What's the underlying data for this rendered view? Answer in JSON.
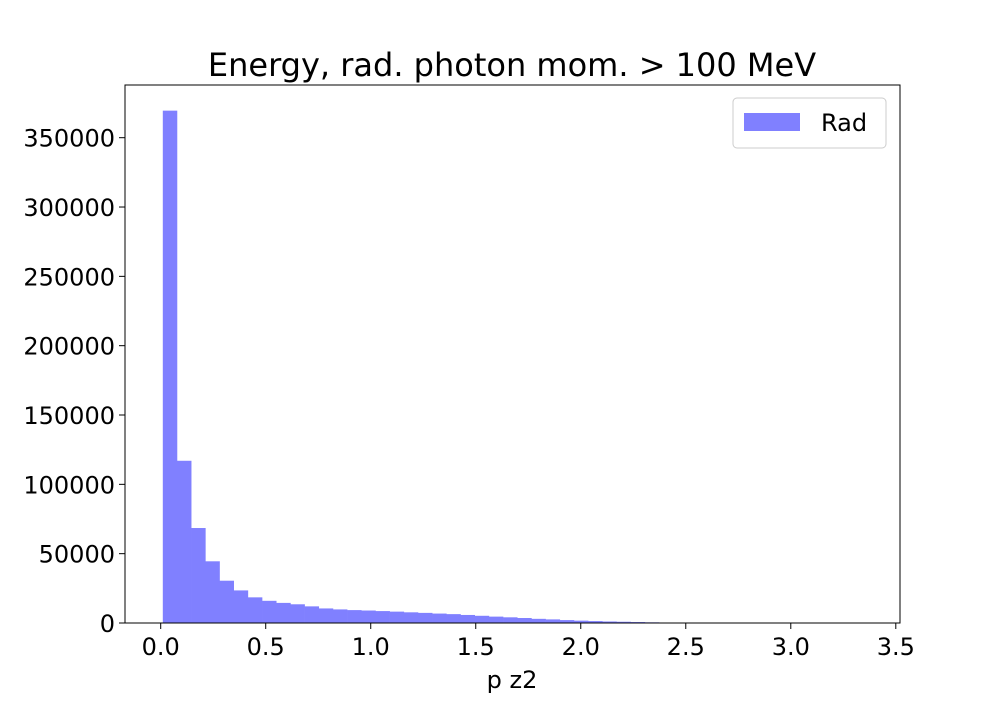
{
  "chart_data": {
    "type": "bar",
    "title": "Energy, rad. photon mom. > 100 MeV",
    "xlabel": "p z2",
    "ylabel": "",
    "xlim": [
      -0.17,
      3.52
    ],
    "ylim": [
      0,
      388000
    ],
    "x_ticks": [
      0.0,
      0.5,
      1.0,
      1.5,
      2.0,
      2.5,
      3.0,
      3.5
    ],
    "x_tick_labels": [
      "0.0",
      "0.5",
      "1.0",
      "1.5",
      "2.0",
      "2.5",
      "3.0",
      "3.5"
    ],
    "y_ticks": [
      0,
      50000,
      100000,
      150000,
      200000,
      250000,
      300000,
      350000
    ],
    "y_tick_labels": [
      "0",
      "50000",
      "100000",
      "150000",
      "200000",
      "250000",
      "300000",
      "350000"
    ],
    "grid": false,
    "legend_position": "top-right",
    "bin_width": 0.0675,
    "bin_edges_start": 0.01,
    "series": [
      {
        "name": "Rad",
        "color": "#8080ff",
        "values": [
          369500,
          117000,
          68500,
          44500,
          30500,
          23500,
          18500,
          16000,
          14500,
          13500,
          12000,
          10500,
          9800,
          9300,
          9000,
          8600,
          8200,
          7700,
          7300,
          6800,
          6400,
          5800,
          5200,
          4600,
          4100,
          3600,
          3000,
          2600,
          2100,
          1700,
          1400,
          1100,
          900,
          700,
          500,
          350,
          250,
          150,
          80,
          40
        ]
      }
    ]
  }
}
